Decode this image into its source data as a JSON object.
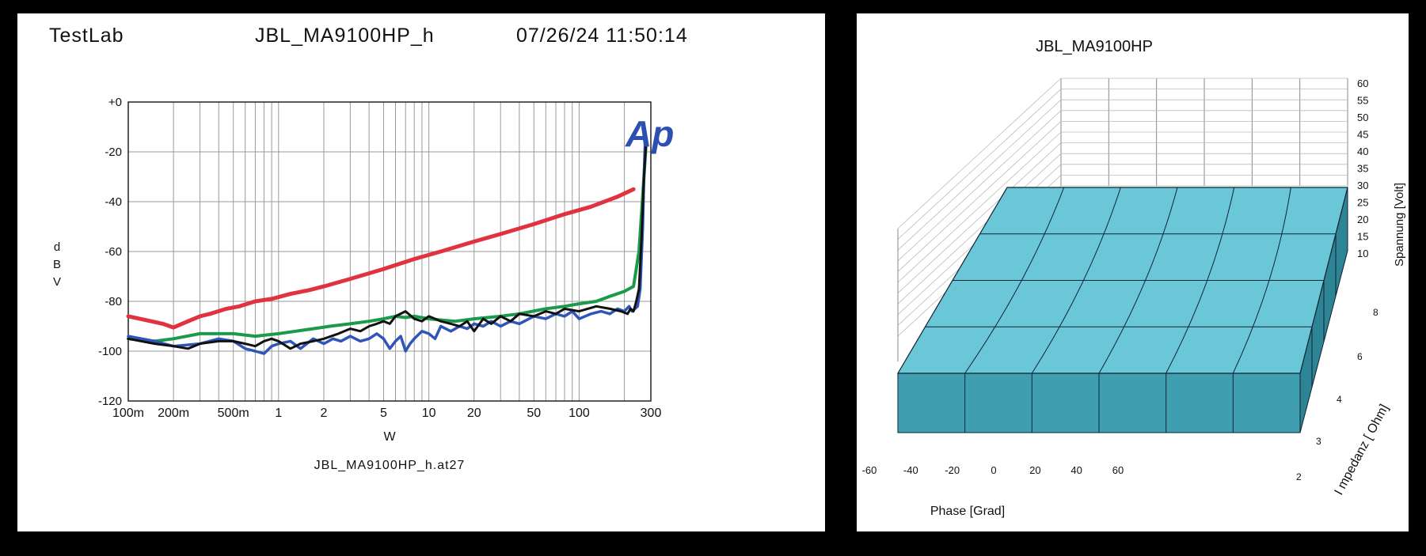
{
  "left_panel": {
    "header_left": "TestLab",
    "header_center": "JBL_MA9100HP_h",
    "header_right": "07/26/24 11:50:14",
    "logo_text": "Ap",
    "footer": "JBL_MA9100HP_h.at27"
  },
  "right_panel": {
    "title": "JBL_MA9100HP"
  },
  "colors": {
    "red": "#e0333f",
    "green": "#1a9a4a",
    "blue": "#2f55b8",
    "black": "#111111",
    "logo": "#2e4fb2",
    "block_top": "#6ac7d8",
    "block_front": "#3f9fb0",
    "block_side": "#2d8494"
  },
  "chart_data": [
    {
      "type": "line",
      "xlabel": "W",
      "ylabel": "d B V",
      "x_scale": "log",
      "xlim": [
        0.1,
        300
      ],
      "ylim": [
        -120,
        0
      ],
      "x_ticks": [
        {
          "v": 0.1,
          "label": "100m"
        },
        {
          "v": 0.2,
          "label": "200m"
        },
        {
          "v": 0.5,
          "label": "500m"
        },
        {
          "v": 1,
          "label": "1"
        },
        {
          "v": 2,
          "label": "2"
        },
        {
          "v": 5,
          "label": "5"
        },
        {
          "v": 10,
          "label": "10"
        },
        {
          "v": 20,
          "label": "20"
        },
        {
          "v": 50,
          "label": "50"
        },
        {
          "v": 100,
          "label": "100"
        },
        {
          "v": 300,
          "label": "300"
        }
      ],
      "y_ticks": [
        {
          "v": 0,
          "label": "+0"
        },
        {
          "v": -20,
          "label": "-20"
        },
        {
          "v": -40,
          "label": "-40"
        },
        {
          "v": -60,
          "label": "-60"
        },
        {
          "v": -80,
          "label": "-80"
        },
        {
          "v": -100,
          "label": "-100"
        },
        {
          "v": -120,
          "label": "-120"
        }
      ],
      "grid": true,
      "series": [
        {
          "color": "#e0333f",
          "width": 5,
          "x": [
            0.1,
            0.13,
            0.17,
            0.2,
            0.25,
            0.3,
            0.35,
            0.45,
            0.55,
            0.7,
            0.9,
            1.2,
            1.6,
            2,
            3,
            5,
            8,
            12,
            20,
            30,
            50,
            80,
            120,
            180,
            230
          ],
          "y": [
            -86,
            -87.5,
            -89,
            -90.5,
            -88,
            -86,
            -85,
            -83,
            -82,
            -80,
            -79,
            -77,
            -75.5,
            -74,
            -71,
            -67,
            -63,
            -60,
            -56,
            -53,
            -49,
            -45,
            -42,
            -38,
            -35
          ]
        },
        {
          "color": "#1a9a4a",
          "width": 4,
          "x": [
            0.1,
            0.15,
            0.2,
            0.3,
            0.5,
            0.7,
            1,
            1.3,
            1.7,
            2.2,
            3,
            4,
            5,
            6,
            7,
            8,
            10,
            12,
            15,
            20,
            30,
            40,
            60,
            80,
            100,
            130,
            160,
            200,
            230,
            250,
            270,
            280
          ],
          "y": [
            -95,
            -96,
            -95,
            -93,
            -93,
            -94,
            -93,
            -92,
            -91,
            -90,
            -89,
            -88,
            -87,
            -86,
            -86.5,
            -86,
            -87,
            -87.5,
            -88,
            -87,
            -86,
            -85,
            -83,
            -82,
            -81,
            -80,
            -78,
            -76,
            -74,
            -60,
            -30,
            -15
          ]
        },
        {
          "color": "#2f55b8",
          "width": 3.5,
          "x": [
            0.1,
            0.15,
            0.2,
            0.3,
            0.4,
            0.5,
            0.6,
            0.7,
            0.8,
            0.9,
            1,
            1.2,
            1.4,
            1.7,
            2,
            2.3,
            2.6,
            3,
            3.5,
            4,
            4.5,
            5,
            5.5,
            6,
            6.5,
            7,
            7.5,
            8,
            9,
            10,
            11,
            12,
            14,
            16,
            18,
            20,
            23,
            26,
            30,
            35,
            40,
            50,
            60,
            70,
            80,
            90,
            100,
            120,
            140,
            160,
            180,
            200,
            215,
            225,
            235,
            245,
            255,
            265,
            270,
            275
          ],
          "y": [
            -94,
            -96,
            -98,
            -97,
            -95,
            -96,
            -99,
            -100,
            -101,
            -98,
            -97,
            -96,
            -99,
            -95,
            -97,
            -95,
            -96,
            -94,
            -96,
            -95,
            -93,
            -95,
            -99,
            -96,
            -94,
            -100,
            -97,
            -95,
            -92,
            -93,
            -95,
            -90,
            -92,
            -90,
            -91,
            -89,
            -90,
            -88,
            -90,
            -88,
            -89,
            -86,
            -87,
            -85,
            -86,
            -84,
            -87,
            -85,
            -84,
            -85,
            -83,
            -84,
            -82,
            -84,
            -83,
            -82,
            -75,
            -50,
            -30,
            -15
          ]
        },
        {
          "color": "#111111",
          "width": 3,
          "x": [
            0.1,
            0.15,
            0.2,
            0.25,
            0.3,
            0.4,
            0.5,
            0.6,
            0.7,
            0.8,
            0.9,
            1,
            1.2,
            1.4,
            1.7,
            2,
            2.5,
            3,
            3.5,
            4,
            4.5,
            5,
            5.5,
            6,
            7,
            8,
            9,
            10,
            11,
            12,
            14,
            16,
            18,
            20,
            23,
            26,
            30,
            35,
            40,
            50,
            60,
            70,
            80,
            100,
            130,
            160,
            190,
            210,
            220,
            230,
            240,
            250,
            260,
            270,
            280
          ],
          "y": [
            -95,
            -97,
            -98,
            -99,
            -97,
            -96,
            -96,
            -97,
            -98,
            -96,
            -95,
            -96,
            -99,
            -97,
            -96,
            -95,
            -93,
            -91,
            -92,
            -90,
            -89,
            -88,
            -89,
            -86,
            -84,
            -87,
            -88,
            -86,
            -87,
            -88,
            -89,
            -90,
            -88,
            -92,
            -87,
            -89,
            -86,
            -88,
            -85,
            -86,
            -84,
            -85,
            -83,
            -84,
            -82,
            -83,
            -84,
            -85,
            -83,
            -84,
            -80,
            -75,
            -55,
            -30,
            -15
          ]
        }
      ]
    },
    {
      "type": "3d-surface",
      "xlabel": "Phase [Grad]",
      "ylabel": "I mpedanz  [ Ohm]",
      "zlabel": "Spannung [Volt]",
      "x_ticks": [
        "-60",
        "-40",
        "-20",
        "0",
        "20",
        "40",
        "60"
      ],
      "y_ticks": [
        "2",
        "3",
        "4",
        "6",
        "8"
      ],
      "z_ticks": [
        "10",
        "15",
        "20",
        "25",
        "30",
        "35",
        "40",
        "45",
        "50",
        "55",
        "60"
      ]
    }
  ]
}
